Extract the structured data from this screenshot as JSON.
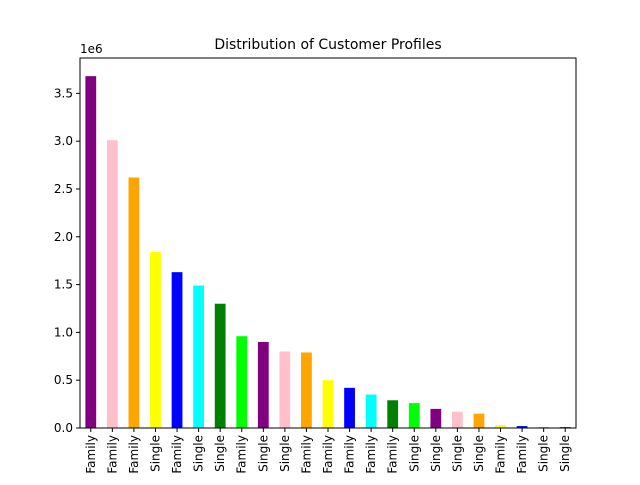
{
  "chart_data": {
    "type": "bar",
    "title": "Distribution of Customer Profiles",
    "xlabel": "",
    "ylabel": "",
    "y_offset_label": "1e6",
    "ylim": [
      0,
      3.87
    ],
    "yticks": [
      "0.0",
      "0.5",
      "1.0",
      "1.5",
      "2.0",
      "2.5",
      "3.0",
      "3.5"
    ],
    "grid": false,
    "legend": "none",
    "categories": [
      "Family",
      "Family",
      "Family",
      "Single",
      "Family",
      "Single",
      "Single",
      "Family",
      "Single",
      "Single",
      "Family",
      "Family",
      "Family",
      "Family",
      "Family",
      "Single",
      "Single",
      "Single",
      "Single",
      "Family",
      "Family",
      "Single",
      "Single"
    ],
    "values": [
      3.68,
      3.01,
      2.62,
      1.84,
      1.63,
      1.49,
      1.3,
      0.96,
      0.9,
      0.8,
      0.79,
      0.5,
      0.42,
      0.35,
      0.29,
      0.26,
      0.2,
      0.17,
      0.15,
      0.03,
      0.02,
      0.01,
      0.01
    ],
    "colors": [
      "#800080",
      "#ffc0cb",
      "#ffa500",
      "#ffff00",
      "#0000ff",
      "#00ffff",
      "#008000",
      "#00ff00",
      "#800080",
      "#ffc0cb",
      "#ffa500",
      "#ffff00",
      "#0000ff",
      "#00ffff",
      "#008000",
      "#00ff00",
      "#800080",
      "#ffc0cb",
      "#ffa500",
      "#ffff00",
      "#0000ff",
      "#00ffff",
      "#008000"
    ]
  }
}
